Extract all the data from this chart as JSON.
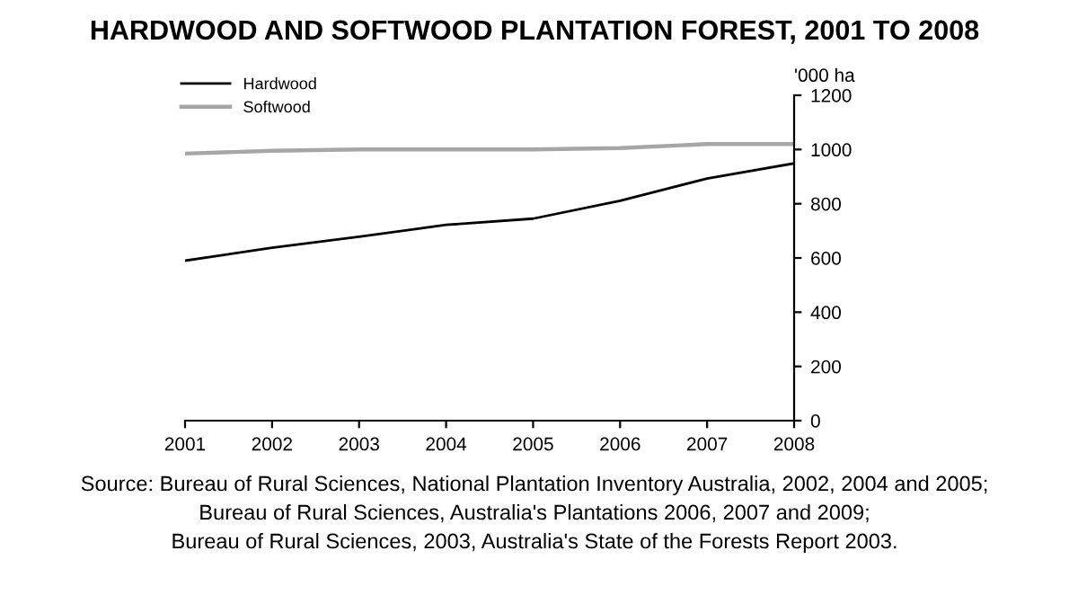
{
  "chart_data": {
    "type": "line",
    "title": "HARDWOOD AND SOFTWOOD PLANTATION FOREST, 2001 TO 2008",
    "ylabel": "'000 ha",
    "x": [
      2001,
      2002,
      2003,
      2004,
      2005,
      2006,
      2007,
      2008
    ],
    "series": [
      {
        "name": "Hardwood",
        "color": "#000000",
        "values": [
          590,
          638,
          678,
          722,
          745,
          811,
          893,
          949
        ]
      },
      {
        "name": "Softwood",
        "color": "#a6a6a6",
        "values": [
          985,
          995,
          1000,
          1000,
          1000,
          1005,
          1020,
          1020
        ]
      }
    ],
    "xlim": [
      2001,
      2008
    ],
    "xticks": [
      2001,
      2002,
      2003,
      2004,
      2005,
      2006,
      2007,
      2008
    ],
    "ylim": [
      0,
      1200
    ],
    "yticks": [
      0,
      200,
      400,
      600,
      800,
      1000,
      1200
    ],
    "grid": false,
    "legend": "top left",
    "marker": "none",
    "line_style": "solid",
    "annotations": [
      "Source: Bureau of Rural Sciences, National Plantation Inventory Australia, 2002, 2004 and 2005;",
      "Bureau of Rural Sciences, Australia's Plantations 2006, 2007 and 2009;",
      "Bureau of Rural Sciences, 2003, Australia's State of the Forests Report 2003."
    ]
  }
}
